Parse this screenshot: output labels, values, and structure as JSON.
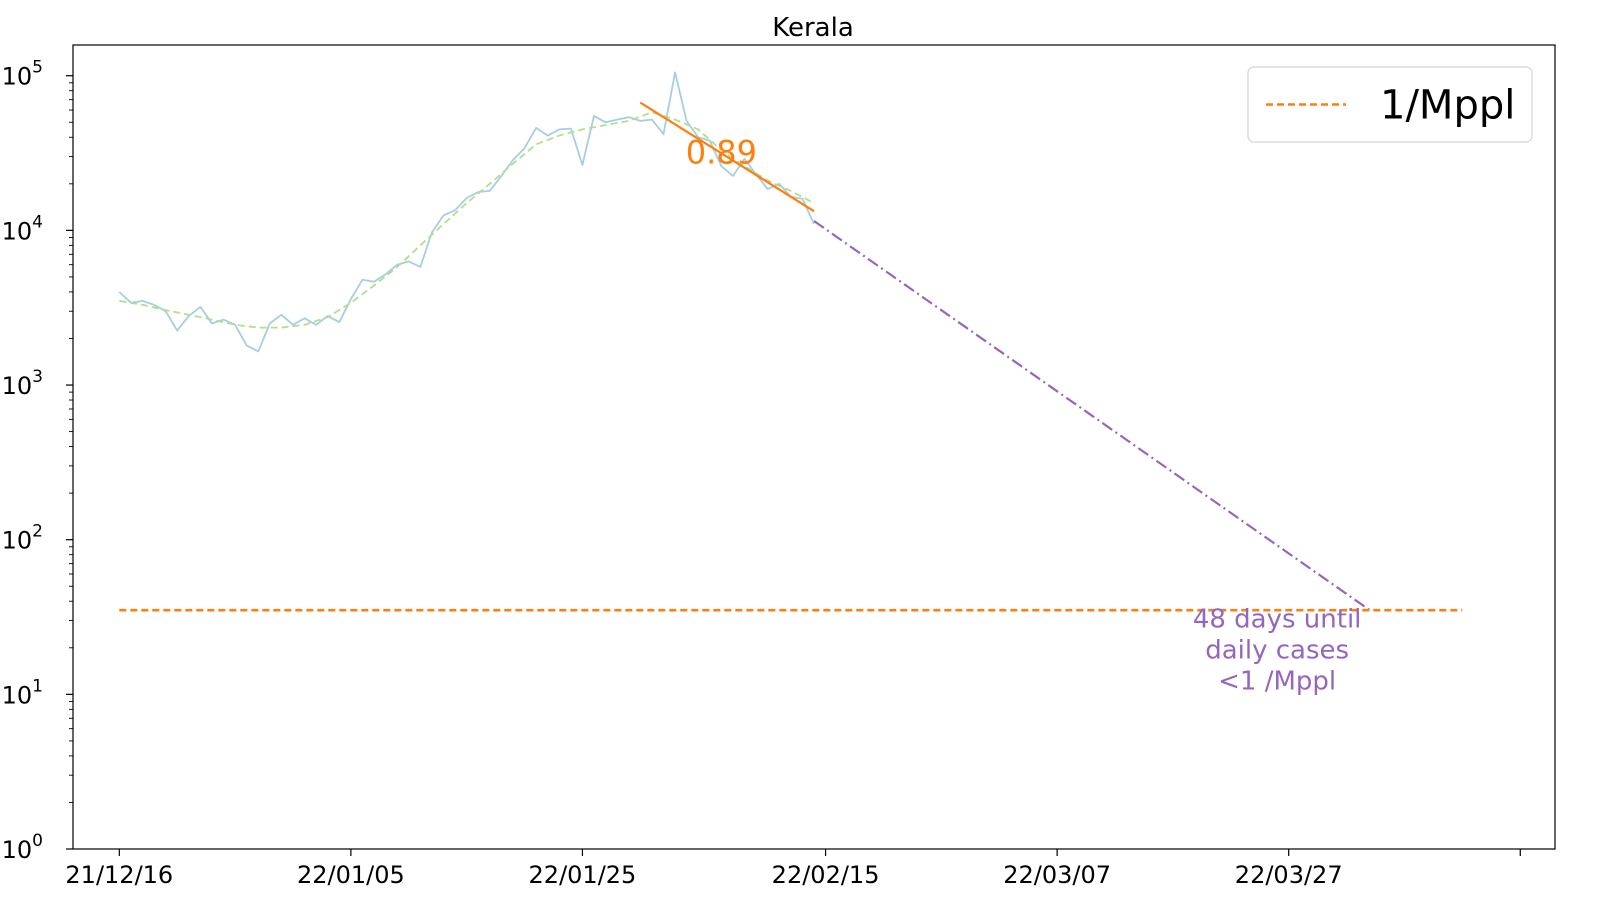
{
  "chart_data": {
    "type": "line",
    "title": "Kerala",
    "yscale": "log",
    "ylim": [
      1,
      158000
    ],
    "xlim": [
      "2021-12-12",
      "2022-04-19"
    ],
    "x_ticks": [
      {
        "date": "2021-12-16",
        "label": "21/12/16"
      },
      {
        "date": "2022-01-05",
        "label": "22/01/05"
      },
      {
        "date": "2022-01-25",
        "label": "22/01/25"
      },
      {
        "date": "2022-02-15",
        "label": "22/02/15"
      },
      {
        "date": "2022-03-07",
        "label": "22/03/07"
      },
      {
        "date": "2022-03-27",
        "label": "22/03/27"
      },
      {
        "date": "2022-04-16",
        "label": ""
      }
    ],
    "y_ticks": [
      {
        "value": 1,
        "base": "10",
        "exp": "0"
      },
      {
        "value": 10,
        "base": "10",
        "exp": "1"
      },
      {
        "value": 100,
        "base": "10",
        "exp": "2"
      },
      {
        "value": 1000,
        "base": "10",
        "exp": "3"
      },
      {
        "value": 10000,
        "base": "10",
        "exp": "4"
      },
      {
        "value": 100000,
        "base": "10",
        "exp": "5"
      }
    ],
    "grid": false,
    "legend": {
      "position": "top-right",
      "entries": [
        {
          "label": "1/Mppl",
          "color": "#ff7f0e",
          "style": "dashed"
        }
      ]
    },
    "series": [
      {
        "role": "daily",
        "color": "#a6cee3",
        "style": "solid",
        "points": [
          [
            "2021-12-16",
            4000
          ],
          [
            "2021-12-17",
            3400
          ],
          [
            "2021-12-18",
            3500
          ],
          [
            "2021-12-19",
            3300
          ],
          [
            "2021-12-20",
            3000
          ],
          [
            "2021-12-21",
            2250
          ],
          [
            "2021-12-22",
            2800
          ],
          [
            "2021-12-23",
            3200
          ],
          [
            "2021-12-24",
            2500
          ],
          [
            "2021-12-25",
            2650
          ],
          [
            "2021-12-26",
            2450
          ],
          [
            "2021-12-27",
            1800
          ],
          [
            "2021-12-28",
            1650
          ],
          [
            "2021-12-29",
            2500
          ],
          [
            "2021-12-30",
            2850
          ],
          [
            "2021-12-31",
            2450
          ],
          [
            "2022-01-01",
            2700
          ],
          [
            "2022-01-02",
            2450
          ],
          [
            "2022-01-03",
            2800
          ],
          [
            "2022-01-04",
            2550
          ],
          [
            "2022-01-05",
            3600
          ],
          [
            "2022-01-06",
            4800
          ],
          [
            "2022-01-07",
            4650
          ],
          [
            "2022-01-08",
            5200
          ],
          [
            "2022-01-09",
            6000
          ],
          [
            "2022-01-10",
            6300
          ],
          [
            "2022-01-11",
            5800
          ],
          [
            "2022-01-12",
            9700
          ],
          [
            "2022-01-13",
            12500
          ],
          [
            "2022-01-14",
            13500
          ],
          [
            "2022-01-15",
            16200
          ],
          [
            "2022-01-16",
            17700
          ],
          [
            "2022-01-17",
            18000
          ],
          [
            "2022-01-18",
            22500
          ],
          [
            "2022-01-19",
            28500
          ],
          [
            "2022-01-20",
            34000
          ],
          [
            "2022-01-21",
            46000
          ],
          [
            "2022-01-22",
            41000
          ],
          [
            "2022-01-23",
            45000
          ],
          [
            "2022-01-24",
            45500
          ],
          [
            "2022-01-25",
            26500
          ],
          [
            "2022-01-26",
            55000
          ],
          [
            "2022-01-27",
            50000
          ],
          [
            "2022-01-28",
            52000
          ],
          [
            "2022-01-29",
            54000
          ],
          [
            "2022-01-30",
            51000
          ],
          [
            "2022-01-31",
            52000
          ],
          [
            "2022-02-01",
            42000
          ],
          [
            "2022-02-02",
            105000
          ],
          [
            "2022-02-03",
            51000
          ],
          [
            "2022-02-04",
            40000
          ],
          [
            "2022-02-05",
            38000
          ],
          [
            "2022-02-06",
            26000
          ],
          [
            "2022-02-07",
            22500
          ],
          [
            "2022-02-08",
            29000
          ],
          [
            "2022-02-09",
            23000
          ],
          [
            "2022-02-10",
            18500
          ],
          [
            "2022-02-11",
            20000
          ],
          [
            "2022-02-12",
            16500
          ],
          [
            "2022-02-13",
            16000
          ],
          [
            "2022-02-14",
            11000
          ]
        ]
      },
      {
        "role": "smoothed",
        "color": "#b2df8a",
        "style": "dashed",
        "points": [
          [
            "2021-12-16",
            3500
          ],
          [
            "2021-12-18",
            3300
          ],
          [
            "2021-12-20",
            3050
          ],
          [
            "2021-12-22",
            2850
          ],
          [
            "2021-12-24",
            2650
          ],
          [
            "2021-12-26",
            2450
          ],
          [
            "2021-12-28",
            2350
          ],
          [
            "2021-12-30",
            2350
          ],
          [
            "2022-01-01",
            2450
          ],
          [
            "2022-01-03",
            2750
          ],
          [
            "2022-01-05",
            3400
          ],
          [
            "2022-01-07",
            4400
          ],
          [
            "2022-01-09",
            5800
          ],
          [
            "2022-01-11",
            8000
          ],
          [
            "2022-01-13",
            11000
          ],
          [
            "2022-01-15",
            15000
          ],
          [
            "2022-01-17",
            20000
          ],
          [
            "2022-01-19",
            27000
          ],
          [
            "2022-01-21",
            36000
          ],
          [
            "2022-01-23",
            41000
          ],
          [
            "2022-01-25",
            45000
          ],
          [
            "2022-01-27",
            48000
          ],
          [
            "2022-01-29",
            51000
          ],
          [
            "2022-01-31",
            58000
          ],
          [
            "2022-02-02",
            52000
          ],
          [
            "2022-02-04",
            45000
          ],
          [
            "2022-02-06",
            33000
          ],
          [
            "2022-02-08",
            26000
          ],
          [
            "2022-02-10",
            21000
          ],
          [
            "2022-02-12",
            18000
          ],
          [
            "2022-02-14",
            15000
          ]
        ]
      },
      {
        "role": "fit",
        "color": "#ff7f0e",
        "style": "solid",
        "points": [
          [
            "2022-01-30",
            67000
          ],
          [
            "2022-02-14",
            13300
          ]
        ]
      },
      {
        "role": "projection",
        "color": "#9467bd",
        "style": "dashdot",
        "points": [
          [
            "2022-02-14",
            11500
          ],
          [
            "2022-04-03",
            35
          ]
        ]
      },
      {
        "role": "threshold",
        "label": "1/Mppl",
        "color": "#ff7f0e",
        "style": "dashed",
        "points": [
          [
            "2021-12-16",
            35
          ],
          [
            "2022-04-11",
            35
          ]
        ]
      }
    ],
    "annotations": [
      {
        "text": "0.89",
        "x": "2022-02-06",
        "y": 27000,
        "color": "#ff7f0e"
      },
      {
        "lines": [
          "48 days until",
          "daily cases",
          "<1 /Mppl"
        ],
        "x": "2022-03-26",
        "y": 27,
        "color": "#9467bd"
      }
    ]
  }
}
